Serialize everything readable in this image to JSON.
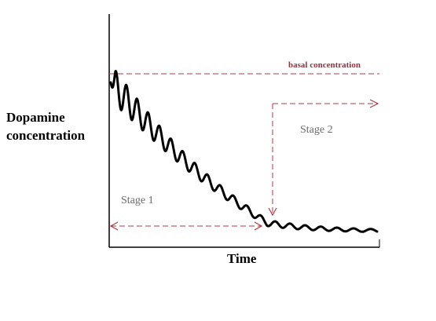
{
  "labels": {
    "y_axis": "Dopamine concentration",
    "x_axis": "Time",
    "basal": "basal concentration",
    "stage1": "Stage 1",
    "stage2": "Stage 2"
  },
  "colors": {
    "curve": "#000000",
    "axis": "#000000",
    "annotation_dashed": "#b03a48",
    "stage_text": "#6a6a6a"
  }
}
